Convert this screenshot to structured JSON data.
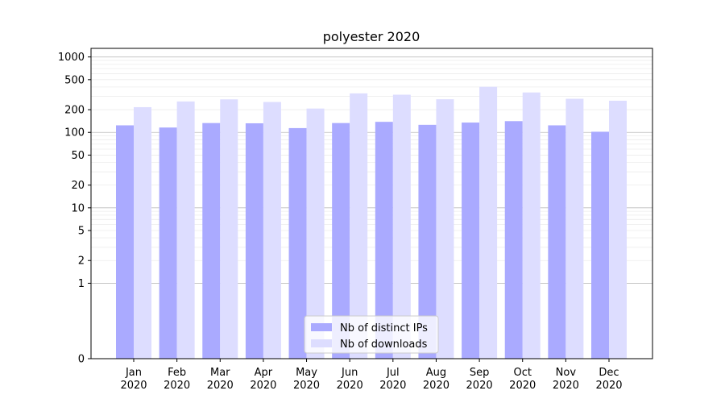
{
  "chart_data": {
    "type": "bar",
    "title": "polyester 2020",
    "xlabel": "",
    "ylabel": "",
    "yscale": "symlog",
    "ylim": [
      0,
      1300
    ],
    "yticks": [
      0,
      1,
      2,
      5,
      10,
      20,
      50,
      100,
      200,
      500,
      1000
    ],
    "grid": true,
    "legend_position": "bottom-center",
    "categories": [
      [
        "Jan",
        "2020"
      ],
      [
        "Feb",
        "2020"
      ],
      [
        "Mar",
        "2020"
      ],
      [
        "Apr",
        "2020"
      ],
      [
        "May",
        "2020"
      ],
      [
        "Jun",
        "2020"
      ],
      [
        "Jul",
        "2020"
      ],
      [
        "Aug",
        "2020"
      ],
      [
        "Sep",
        "2020"
      ],
      [
        "Oct",
        "2020"
      ],
      [
        "Nov",
        "2020"
      ],
      [
        "Dec",
        "2020"
      ]
    ],
    "series": [
      {
        "name": "Nb of distinct IPs",
        "color": "#aaaaff",
        "values": [
          124,
          116,
          133,
          132,
          114,
          133,
          138,
          126,
          135,
          141,
          124,
          102
        ]
      },
      {
        "name": "Nb of downloads",
        "color": "#ddddff",
        "values": [
          216,
          257,
          274,
          253,
          207,
          329,
          316,
          275,
          402,
          338,
          279,
          263
        ]
      }
    ]
  }
}
